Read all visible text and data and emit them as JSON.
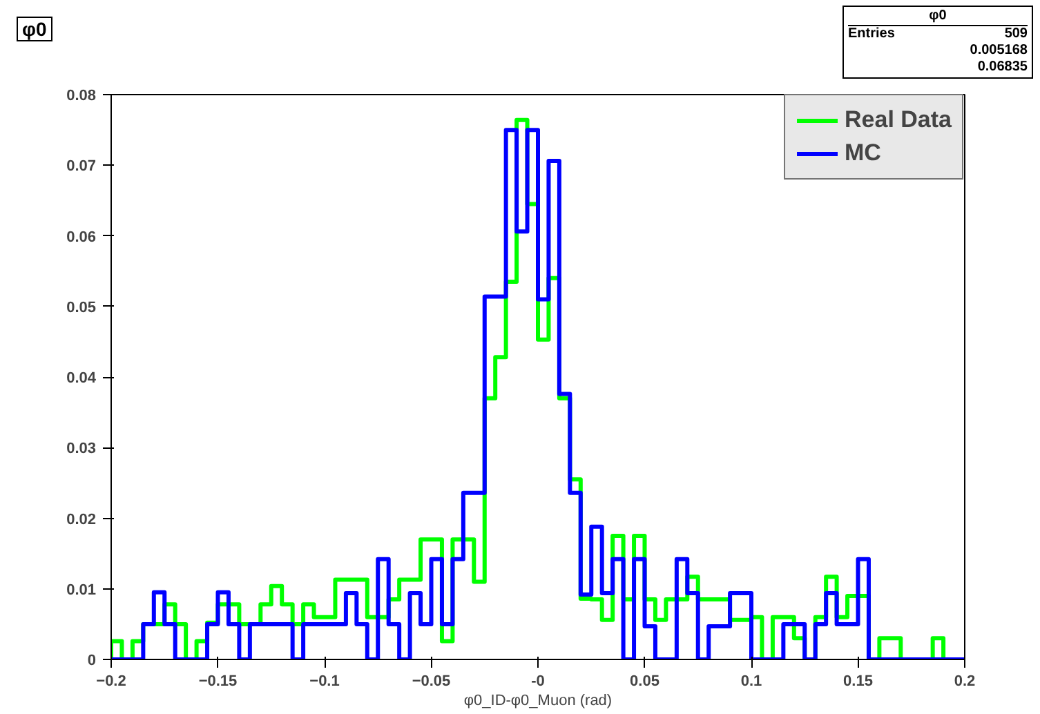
{
  "chart_data": {
    "type": "histogram",
    "title": "φ0",
    "xlabel": "φ0_ID-φ0_Muon (rad)",
    "bins": [
      -0.2,
      -0.195,
      -0.19,
      -0.185,
      -0.18,
      -0.175,
      -0.17,
      -0.165,
      -0.16,
      -0.155,
      -0.15,
      -0.145,
      -0.14,
      -0.135,
      -0.13,
      -0.125,
      -0.12,
      -0.115,
      -0.11,
      -0.105,
      -0.1,
      -0.095,
      -0.09,
      -0.085,
      -0.08,
      -0.075,
      -0.07,
      -0.065,
      -0.06,
      -0.055,
      -0.05,
      -0.045,
      -0.04,
      -0.035,
      -0.03,
      -0.025,
      -0.02,
      -0.015,
      -0.01,
      -0.005,
      0,
      0.005,
      0.01,
      0.015,
      0.02,
      0.025,
      0.03,
      0.035,
      0.04,
      0.045,
      0.05,
      0.055,
      0.06,
      0.065,
      0.07,
      0.075,
      0.08,
      0.085,
      0.09,
      0.095,
      0.1,
      0.105,
      0.11,
      0.115,
      0.12,
      0.125,
      0.13,
      0.135,
      0.14,
      0.145,
      0.15,
      0.155,
      0.16,
      0.165,
      0.17,
      0.175,
      0.18,
      0.185,
      0.19,
      0.195,
      0.2
    ],
    "series": [
      {
        "name": "Real Data",
        "color": "#00ff00",
        "values": [
          0.0026,
          0,
          0.0026,
          0.005,
          0.005,
          0.0078,
          0.005,
          0,
          0.0026,
          0.0052,
          0.0078,
          0.0078,
          0.005,
          0.005,
          0.0078,
          0.0104,
          0.0078,
          0.005,
          0.0078,
          0.006,
          0.006,
          0.0113,
          0.0113,
          0.0113,
          0.006,
          0.006,
          0.0085,
          0.0113,
          0.0113,
          0.017,
          0.017,
          0.0026,
          0.017,
          0.017,
          0.011,
          0.037,
          0.0428,
          0.0535,
          0.0764,
          0.0645,
          0.0453,
          0.054,
          0.037,
          0.0255,
          0.0086,
          0.0085,
          0.0056,
          0.0175,
          0.0085,
          0.0175,
          0.0085,
          0.0056,
          0.0085,
          0.0085,
          0.0117,
          0.0085,
          0.0085,
          0.0085,
          0.0056,
          0.0056,
          0.006,
          0,
          0.006,
          0.006,
          0.003,
          0,
          0.006,
          0.0117,
          0.006,
          0.009,
          0.009,
          0,
          0.003,
          0.003,
          0,
          0,
          0,
          0.003,
          0,
          0
        ]
      },
      {
        "name": "MC",
        "color": "#0000ff",
        "values": [
          0,
          0,
          0,
          0.005,
          0.0095,
          0.005,
          0,
          0,
          0,
          0.005,
          0.0095,
          0.005,
          0,
          0.005,
          0.005,
          0.005,
          0.005,
          0,
          0.005,
          0.005,
          0.005,
          0.005,
          0.0094,
          0.005,
          0,
          0.0142,
          0.005,
          0,
          0.0094,
          0.005,
          0.0142,
          0.005,
          0.0142,
          0.0236,
          0.0236,
          0.0514,
          0.0514,
          0.075,
          0.0606,
          0.075,
          0.051,
          0.0706,
          0.0376,
          0.0236,
          0.0092,
          0.0188,
          0.0094,
          0.0142,
          0,
          0.0142,
          0.0047,
          0,
          0,
          0.0142,
          0.0094,
          0,
          0.0047,
          0.0047,
          0.0094,
          0.0094,
          0,
          0,
          0,
          0.005,
          0.005,
          0,
          0.005,
          0.0094,
          0.005,
          0.005,
          0.0142,
          0,
          0,
          0,
          0,
          0,
          0,
          0,
          0,
          0
        ]
      }
    ],
    "xlim": [
      -0.2,
      0.2
    ],
    "ylim": [
      0,
      0.08
    ],
    "xticks": [
      -0.2,
      -0.15,
      -0.1,
      -0.05,
      {
        "value": 0,
        "label": "-0"
      },
      0.05,
      0.1,
      0.15,
      0.2
    ],
    "yticks": [
      0,
      0.01,
      0.02,
      0.03,
      0.04,
      0.05,
      0.06,
      0.07,
      0.08
    ],
    "legend": "top right",
    "grid": false,
    "annotations": [
      "φ0",
      "Entries",
      "509",
      "0.005168",
      "0.06835"
    ]
  }
}
